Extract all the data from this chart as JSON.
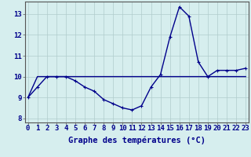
{
  "xlabel": "Graphe des températures (°C)",
  "x_hours": [
    0,
    1,
    2,
    3,
    4,
    5,
    6,
    7,
    8,
    9,
    10,
    11,
    12,
    13,
    14,
    15,
    16,
    17,
    18,
    19,
    20,
    21,
    22,
    23
  ],
  "temp_line": [
    9.0,
    9.5,
    10.0,
    10.0,
    10.0,
    9.8,
    9.5,
    9.3,
    8.9,
    8.7,
    8.5,
    8.4,
    8.6,
    9.5,
    10.1,
    11.9,
    13.35,
    12.9,
    10.7,
    10.0,
    10.3,
    10.3,
    10.3,
    10.4
  ],
  "flat_line": [
    9.0,
    10.0,
    10.0,
    10.0,
    10.0,
    10.0,
    10.0,
    10.0,
    10.0,
    10.0,
    10.0,
    10.0,
    10.0,
    10.0,
    10.0,
    10.0,
    10.0,
    10.0,
    10.0,
    10.0,
    10.0,
    10.0,
    10.0,
    10.0
  ],
  "ylim": [
    7.8,
    13.6
  ],
  "yticks": [
    8,
    9,
    10,
    11,
    12,
    13
  ],
  "xlim": [
    -0.3,
    23.3
  ],
  "bg_color": "#d6eeee",
  "line_color": "#00008b",
  "grid_color": "#b0cccc",
  "axis_label_color": "#00008b",
  "tick_label_color": "#00008b",
  "xlabel_fontsize": 7.5,
  "tick_fontsize": 6.5
}
